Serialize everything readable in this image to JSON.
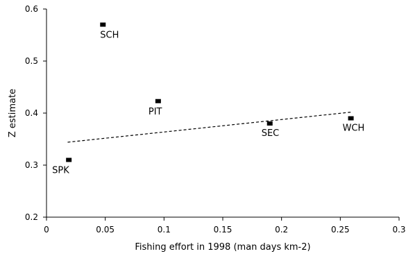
{
  "chart_data": {
    "type": "scatter",
    "title": "",
    "xlabel": "Fishing effort in 1998 (man days km-2)",
    "ylabel": "Z estimate",
    "xlim": [
      0,
      0.3
    ],
    "ylim": [
      0.2,
      0.6
    ],
    "x_ticks": [
      0,
      0.05,
      0.1,
      0.15,
      0.2,
      0.25,
      0.3
    ],
    "x_tick_labels": [
      "0",
      "0.05",
      "0.1",
      "0.15",
      "0.2",
      "0.25",
      "0.3"
    ],
    "y_ticks": [
      0.2,
      0.3,
      0.4,
      0.5,
      0.6
    ],
    "y_tick_labels": [
      "0.2",
      "0.3",
      "0.4",
      "0.5",
      "0.6"
    ],
    "grid": false,
    "legend": "none",
    "marker_color": "#000000",
    "points": [
      {
        "label": "SCH",
        "x": 0.048,
        "y": 0.57
      },
      {
        "label": "PIT",
        "x": 0.095,
        "y": 0.423
      },
      {
        "label": "SEC",
        "x": 0.19,
        "y": 0.38
      },
      {
        "label": "WCH",
        "x": 0.259,
        "y": 0.39
      },
      {
        "label": "SPK",
        "x": 0.019,
        "y": 0.31
      }
    ],
    "trendline": {
      "style": "dashed",
      "x": [
        0.018,
        0.26
      ],
      "y": [
        0.344,
        0.402
      ]
    }
  }
}
